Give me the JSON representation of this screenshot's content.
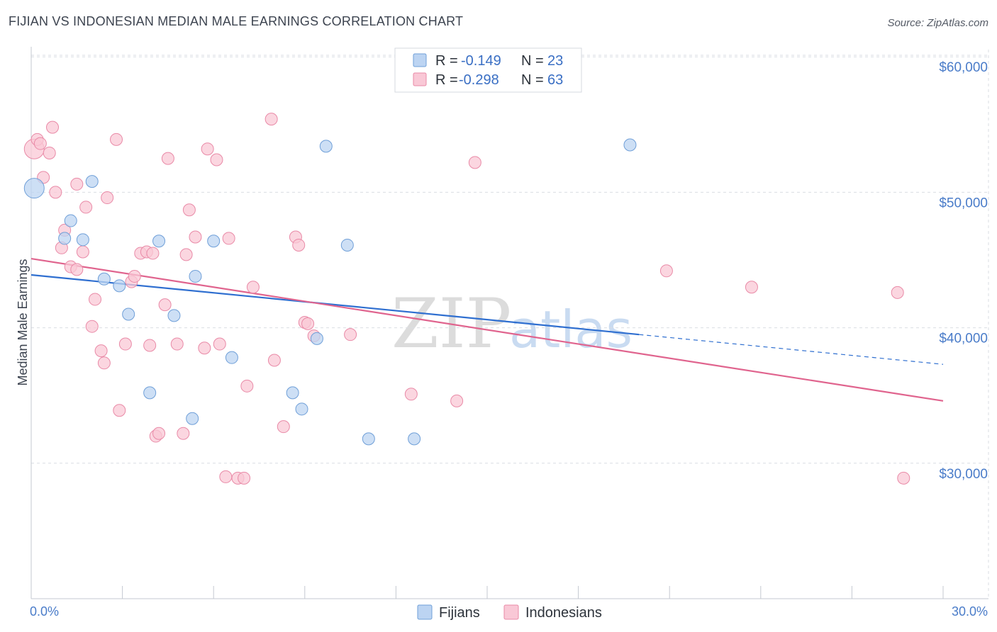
{
  "title": "FIJIAN VS INDONESIAN MEDIAN MALE EARNINGS CORRELATION CHART",
  "source": "Source: ZipAtlas.com",
  "watermark": {
    "zip": "ZIP",
    "atlas": "atlas"
  },
  "legend_top": [
    {
      "r_label": "R = ",
      "r_value": "-0.149",
      "n_label": "N = ",
      "n_value": "23"
    },
    {
      "r_label": "R = ",
      "r_value": "-0.298",
      "n_label": "N = ",
      "n_value": "63"
    }
  ],
  "legend_bottom": [
    "Fijians",
    "Indonesians"
  ],
  "colors": {
    "fijian_fill": "#bcd4f2",
    "fijian_stroke": "#6f9fd8",
    "fijian_line": "#2f6fd0",
    "indonesian_fill": "#f9c8d6",
    "indonesian_stroke": "#e98aa7",
    "indonesian_line": "#e0648e",
    "grid": "#d9dde3",
    "tick_label": "#4a7cc9"
  },
  "chart_data": {
    "type": "scatter",
    "title": "FIJIAN VS INDONESIAN MEDIAN MALE EARNINGS CORRELATION CHART",
    "xlabel": "",
    "ylabel": "Median Male Earnings",
    "xlim": [
      0,
      30
    ],
    "ylim": [
      20000,
      62000
    ],
    "x_tick_labels": [
      "0.0%",
      "30.0%"
    ],
    "y_ticks": [
      {
        "value": 30000,
        "label": "$30,000"
      },
      {
        "value": 40000,
        "label": "$40,000"
      },
      {
        "value": 50000,
        "label": "$50,000"
      },
      {
        "value": 60000,
        "label": "$60,000"
      }
    ],
    "grid": true,
    "legend_placement": "top-center",
    "series": [
      {
        "name": "Fijians",
        "r": -0.149,
        "n": 23,
        "trend": {
          "x0": 0,
          "y0": 43900,
          "x1": 20,
          "y1": 39500,
          "dashed_to_x": 30,
          "dashed_to_y": 37300
        },
        "points": [
          {
            "x": 0.1,
            "y": 50300,
            "big": true
          },
          {
            "x": 1.3,
            "y": 47900
          },
          {
            "x": 1.1,
            "y": 46600
          },
          {
            "x": 2.0,
            "y": 50800
          },
          {
            "x": 1.7,
            "y": 46500
          },
          {
            "x": 2.4,
            "y": 43600
          },
          {
            "x": 2.9,
            "y": 43100
          },
          {
            "x": 3.2,
            "y": 41000
          },
          {
            "x": 4.2,
            "y": 46400
          },
          {
            "x": 4.7,
            "y": 40900
          },
          {
            "x": 5.4,
            "y": 43800
          },
          {
            "x": 6.0,
            "y": 46400
          },
          {
            "x": 6.6,
            "y": 37800
          },
          {
            "x": 3.9,
            "y": 35200
          },
          {
            "x": 5.3,
            "y": 33300
          },
          {
            "x": 8.6,
            "y": 35200
          },
          {
            "x": 8.9,
            "y": 34000
          },
          {
            "x": 9.4,
            "y": 39200
          },
          {
            "x": 9.7,
            "y": 53400
          },
          {
            "x": 10.4,
            "y": 46100
          },
          {
            "x": 11.1,
            "y": 31800
          },
          {
            "x": 12.6,
            "y": 31800
          },
          {
            "x": 19.7,
            "y": 53500
          }
        ]
      },
      {
        "name": "Indonesians",
        "r": -0.298,
        "n": 63,
        "trend": {
          "x0": 0,
          "y0": 45100,
          "x1": 30,
          "y1": 34600
        },
        "points": [
          {
            "x": 0.1,
            "y": 53200,
            "big": true
          },
          {
            "x": 0.2,
            "y": 53900
          },
          {
            "x": 0.6,
            "y": 52900
          },
          {
            "x": 0.7,
            "y": 54800
          },
          {
            "x": 0.4,
            "y": 51100
          },
          {
            "x": 0.8,
            "y": 50000
          },
          {
            "x": 1.1,
            "y": 47200
          },
          {
            "x": 1.0,
            "y": 45900
          },
          {
            "x": 1.3,
            "y": 44500
          },
          {
            "x": 1.5,
            "y": 44300
          },
          {
            "x": 1.5,
            "y": 50600
          },
          {
            "x": 1.8,
            "y": 48900
          },
          {
            "x": 1.7,
            "y": 45600
          },
          {
            "x": 2.5,
            "y": 49600
          },
          {
            "x": 2.8,
            "y": 53900
          },
          {
            "x": 2.1,
            "y": 42100
          },
          {
            "x": 2.0,
            "y": 40100
          },
          {
            "x": 2.3,
            "y": 38300
          },
          {
            "x": 2.4,
            "y": 37400
          },
          {
            "x": 3.1,
            "y": 38800
          },
          {
            "x": 2.9,
            "y": 33900
          },
          {
            "x": 3.3,
            "y": 43400
          },
          {
            "x": 3.4,
            "y": 43800
          },
          {
            "x": 3.6,
            "y": 45500
          },
          {
            "x": 3.8,
            "y": 45600
          },
          {
            "x": 4.0,
            "y": 45500
          },
          {
            "x": 3.9,
            "y": 38700
          },
          {
            "x": 4.5,
            "y": 52500
          },
          {
            "x": 4.4,
            "y": 41700
          },
          {
            "x": 4.8,
            "y": 38800
          },
          {
            "x": 4.1,
            "y": 32000
          },
          {
            "x": 4.2,
            "y": 32200
          },
          {
            "x": 5.1,
            "y": 45400
          },
          {
            "x": 5.2,
            "y": 48700
          },
          {
            "x": 5.4,
            "y": 46700
          },
          {
            "x": 5.0,
            "y": 32200
          },
          {
            "x": 5.8,
            "y": 53200
          },
          {
            "x": 5.7,
            "y": 38500
          },
          {
            "x": 6.1,
            "y": 52400
          },
          {
            "x": 6.2,
            "y": 38800
          },
          {
            "x": 6.5,
            "y": 46600
          },
          {
            "x": 6.4,
            "y": 29000
          },
          {
            "x": 6.8,
            "y": 28900
          },
          {
            "x": 7.0,
            "y": 28900
          },
          {
            "x": 7.1,
            "y": 35700
          },
          {
            "x": 7.3,
            "y": 43000
          },
          {
            "x": 7.9,
            "y": 55400
          },
          {
            "x": 8.0,
            "y": 37600
          },
          {
            "x": 8.3,
            "y": 32700
          },
          {
            "x": 8.7,
            "y": 46700
          },
          {
            "x": 8.8,
            "y": 46100
          },
          {
            "x": 9.0,
            "y": 40400
          },
          {
            "x": 9.1,
            "y": 40300
          },
          {
            "x": 9.3,
            "y": 39400
          },
          {
            "x": 10.5,
            "y": 39500
          },
          {
            "x": 12.5,
            "y": 35100
          },
          {
            "x": 14.0,
            "y": 34600
          },
          {
            "x": 14.6,
            "y": 52200
          },
          {
            "x": 20.9,
            "y": 44200
          },
          {
            "x": 23.7,
            "y": 43000
          },
          {
            "x": 28.5,
            "y": 42600
          },
          {
            "x": 28.7,
            "y": 28900
          },
          {
            "x": 0.3,
            "y": 53600
          }
        ]
      }
    ]
  }
}
